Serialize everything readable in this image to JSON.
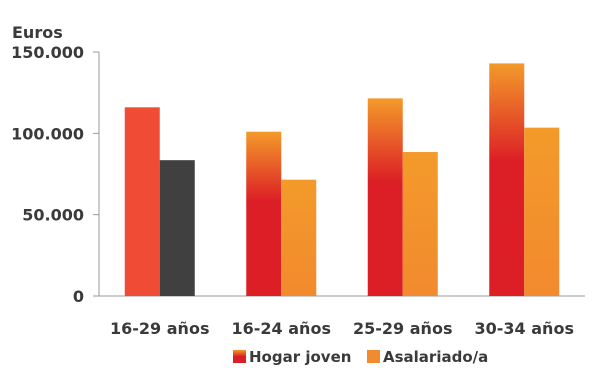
{
  "chart_data": {
    "type": "bar",
    "ylabel": "Euros",
    "ylim": [
      0,
      150000
    ],
    "yticks": [
      {
        "value": 0,
        "label": "0"
      },
      {
        "value": 50000,
        "label": "50.000"
      },
      {
        "value": 100000,
        "label": "100.000"
      },
      {
        "value": 150000,
        "label": "150.000"
      }
    ],
    "categories": [
      "16-29 años",
      "16-24 años",
      "25-29 años",
      "30-34 años"
    ],
    "series": [
      {
        "name": "Hogar joven",
        "values": [
          116000,
          101000,
          121500,
          143000
        ]
      },
      {
        "name": "Asalariado/a",
        "values": [
          83500,
          71500,
          88500,
          103500
        ]
      }
    ],
    "legend": "bottom",
    "grid": false,
    "colors": {
      "hogar_top": "#f39a2a",
      "hogar_bottom": "#dc1f26",
      "asalariado": "#f28a2e",
      "asalariado_light": "#f39a2a",
      "first_hogar": "#ef4b35",
      "first_asalariado": "#404040",
      "axis": "#9a9a9a",
      "text": "#3a3a3a"
    }
  }
}
